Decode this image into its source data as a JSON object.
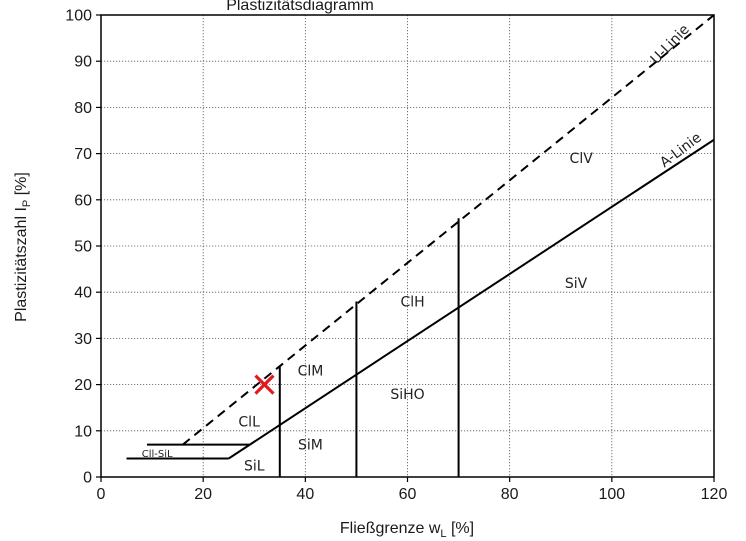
{
  "chart_data": {
    "type": "line",
    "title": "Plastizitätsdiagramm",
    "xlabel": "Fließgrenze w",
    "xlabel_sub": "L",
    "xlabel_unit": " [%]",
    "ylabel": "Plastizitätszahl I",
    "ylabel_sub": "P",
    "ylabel_unit": " [%]",
    "xlim": [
      0,
      120
    ],
    "ylim": [
      0,
      100
    ],
    "xticks": [
      0,
      20,
      40,
      60,
      80,
      100,
      120
    ],
    "yticks": [
      0,
      10,
      20,
      30,
      40,
      50,
      60,
      70,
      80,
      90,
      100
    ],
    "grid": "dotted",
    "lines": [
      {
        "name": "A-Linie",
        "style": "solid",
        "points": [
          [
            25,
            4
          ],
          [
            120,
            73
          ]
        ]
      },
      {
        "name": "U-Linie",
        "style": "dashed",
        "points": [
          [
            16,
            7
          ],
          [
            120,
            100
          ]
        ]
      }
    ],
    "boundaries": [
      {
        "points": [
          [
            5,
            4
          ],
          [
            25,
            4
          ]
        ]
      },
      {
        "points": [
          [
            9,
            7
          ],
          [
            29,
            7
          ]
        ]
      },
      {
        "points": [
          [
            35,
            0
          ],
          [
            35,
            24
          ]
        ]
      },
      {
        "points": [
          [
            50,
            0
          ],
          [
            50,
            38
          ]
        ]
      },
      {
        "points": [
          [
            70,
            0
          ],
          [
            70,
            56
          ]
        ]
      }
    ],
    "regions": [
      {
        "label": "ClV",
        "x": 94,
        "y": 69
      },
      {
        "label": "ClH",
        "x": 61,
        "y": 38
      },
      {
        "label": "SiV",
        "x": 93,
        "y": 42
      },
      {
        "label": "ClM",
        "x": 41,
        "y": 23
      },
      {
        "label": "SiHO",
        "x": 60,
        "y": 18
      },
      {
        "label": "ClL",
        "x": 29,
        "y": 12
      },
      {
        "label": "SiM",
        "x": 41,
        "y": 7
      },
      {
        "label": "SiL",
        "x": 30,
        "y": 2.5
      },
      {
        "label": "Cll-SiL",
        "x": 11,
        "y": 5.4,
        "small": true
      }
    ],
    "line_labels": [
      {
        "label": "U-Linie",
        "x": 112,
        "y": 93,
        "angle": -46
      },
      {
        "label": "A-Linie",
        "x": 114,
        "y": 70,
        "angle": -37
      }
    ],
    "marker": {
      "symbol": "x",
      "x": 32,
      "y": 20,
      "color": "#e8171d"
    }
  }
}
